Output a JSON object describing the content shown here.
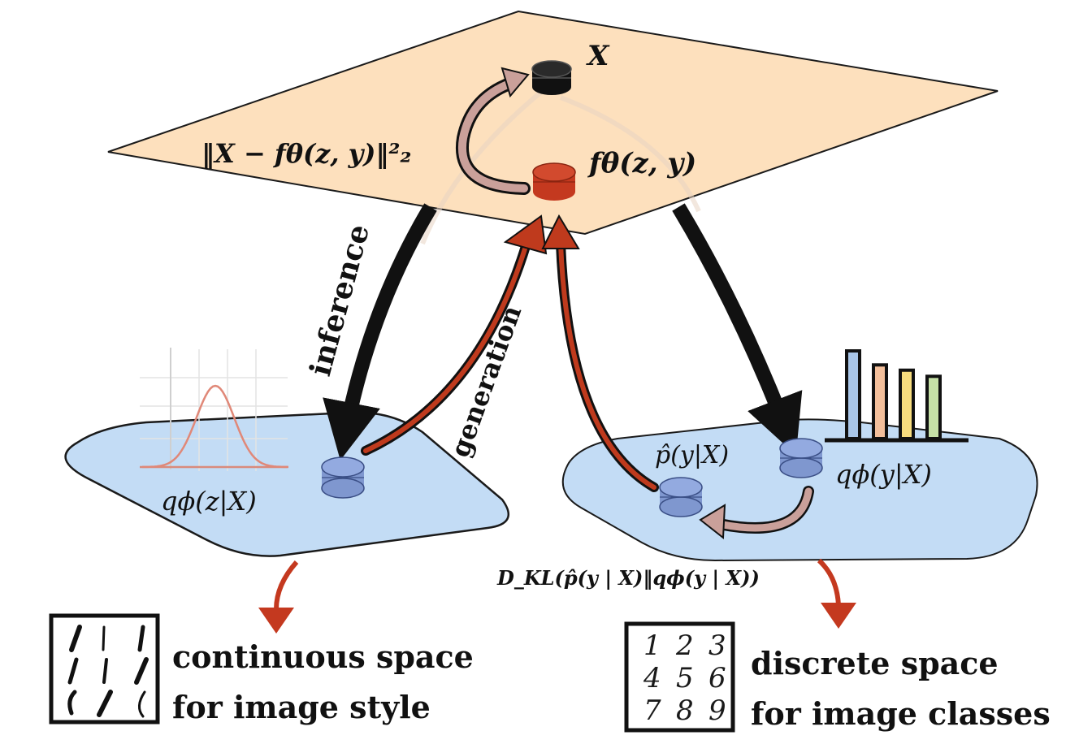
{
  "nodes": {
    "x": {
      "label": "X",
      "color": "#111111"
    },
    "f": {
      "label": "fθ(z, y)",
      "color": "#c4391f"
    },
    "z_latent": {
      "color": "#7f97cf"
    },
    "p_hat": {
      "color": "#7f97cf"
    },
    "q_y": {
      "color": "#7f97cf"
    }
  },
  "labels": {
    "recon_loss": "‖X − fθ(z, y)‖²₂",
    "inference": "inference",
    "generation": "generation",
    "q_z": "qϕ(z|X)",
    "q_y": "qϕ(y|X)",
    "p_hat": "p̂(y|X)",
    "kl": "D_KL(p̂(y | X)‖qϕ(y | X))"
  },
  "legends": {
    "continuous": {
      "line1": "continuous space",
      "line2": "for image style"
    },
    "discrete": {
      "line1": "discrete space",
      "line2": "for image classes"
    }
  },
  "digits": [
    "1",
    "2",
    "3",
    "4",
    "5",
    "6",
    "7",
    "8",
    "9"
  ],
  "colors": {
    "top_plane": "#fde0bd",
    "bottom_plane": "#c3dcf5",
    "generation_arrow": "#bf3a1d",
    "inference_arrow": "#111111",
    "feedback_arrow": "#caa09a",
    "bars": [
      "#a9c6e8",
      "#f3bf9b",
      "#f7dc7e",
      "#c6e1a7"
    ]
  },
  "chart_data": [
    {
      "type": "line",
      "description_series": "gaussian",
      "title": "",
      "xlabel": "",
      "ylabel": ""
    },
    {
      "type": "bar",
      "values": [
        1.0,
        0.84,
        0.78,
        0.71
      ],
      "title": "",
      "xlabel": "",
      "ylabel": ""
    }
  ]
}
